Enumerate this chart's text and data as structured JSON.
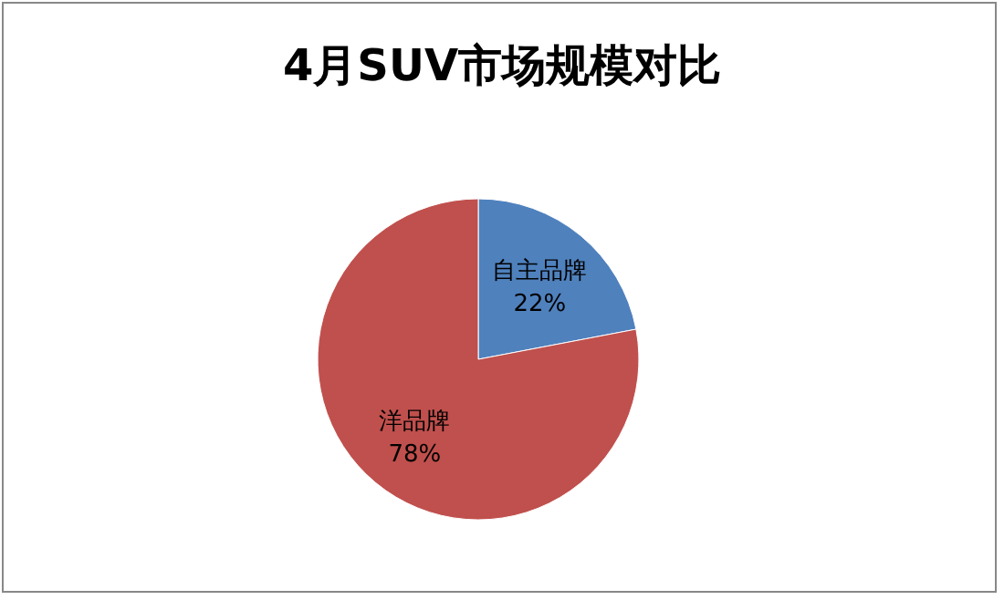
{
  "chart_data": {
    "type": "pie",
    "title": "4月SUV市场规模对比",
    "categories": [
      "自主品牌",
      "洋品牌"
    ],
    "values": [
      22,
      78
    ],
    "colors": [
      "#4f81bd",
      "#c0504d"
    ],
    "value_labels": [
      "22%",
      "78%"
    ]
  }
}
